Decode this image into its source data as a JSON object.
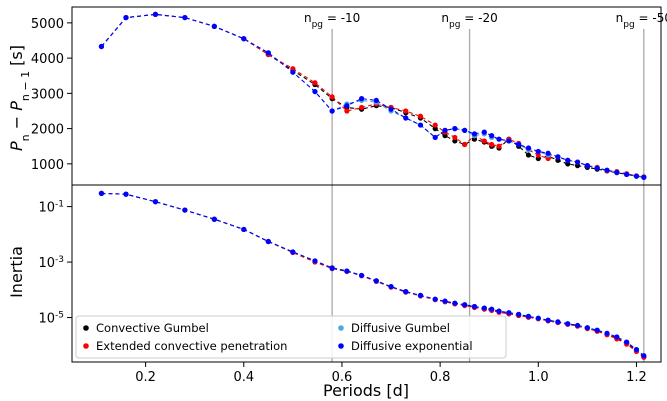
{
  "chart_data": [
    {
      "type": "line",
      "panel": "top",
      "ylabel": "P_n − P_{n−1} [s]",
      "ylim": [
        400,
        5450
      ],
      "yticks": [
        1000,
        2000,
        3000,
        4000,
        5000
      ],
      "grid": false,
      "vlines": [
        {
          "x": 0.58,
          "label": "n_pg = -10"
        },
        {
          "x": 0.86,
          "label": "n_pg = -20"
        },
        {
          "x": 1.215,
          "label": "n_pg = -50"
        }
      ],
      "series": [
        {
          "name": "Convective Gumbel",
          "color": "#000000",
          "x": [
            0.11,
            0.16,
            0.22,
            0.28,
            0.34,
            0.4,
            0.45,
            0.5,
            0.545,
            0.58,
            0.61,
            0.64,
            0.67,
            0.7,
            0.73,
            0.76,
            0.79,
            0.81,
            0.83,
            0.85,
            0.87,
            0.89,
            0.905,
            0.92,
            0.94,
            0.96,
            0.98,
            1.0,
            1.02,
            1.04,
            1.06,
            1.08,
            1.1,
            1.12,
            1.14,
            1.16,
            1.18,
            1.2,
            1.215
          ],
          "values": [
            4330,
            5150,
            5240,
            5150,
            4900,
            4550,
            4100,
            3650,
            3250,
            2850,
            2600,
            2550,
            2650,
            2600,
            2450,
            2300,
            2000,
            1800,
            1650,
            1550,
            1700,
            1620,
            1500,
            1450,
            1700,
            1500,
            1250,
            1150,
            1220,
            1100,
            1000,
            950,
            900,
            850,
            800,
            750,
            700,
            650,
            620
          ]
        },
        {
          "name": "Extended convective penetration",
          "color": "#ff0000",
          "x": [
            0.11,
            0.16,
            0.22,
            0.28,
            0.34,
            0.4,
            0.45,
            0.5,
            0.545,
            0.58,
            0.61,
            0.64,
            0.67,
            0.7,
            0.73,
            0.76,
            0.79,
            0.81,
            0.83,
            0.85,
            0.87,
            0.89,
            0.905,
            0.92,
            0.94,
            0.96,
            0.98,
            1.0,
            1.02,
            1.04,
            1.06,
            1.08,
            1.1,
            1.12,
            1.14,
            1.16,
            1.18,
            1.2,
            1.215
          ],
          "values": [
            4330,
            5150,
            5240,
            5150,
            4900,
            4550,
            4100,
            3700,
            3300,
            2900,
            2500,
            2600,
            2700,
            2600,
            2500,
            2350,
            2100,
            1900,
            1750,
            1550,
            1800,
            1650,
            1550,
            1500,
            1700,
            1580,
            1400,
            1250,
            1150,
            1200,
            1100,
            1050,
            950,
            900,
            800,
            780,
            720,
            660,
            630
          ]
        },
        {
          "name": "Diffusive Gumbel",
          "color": "#4ea8de",
          "x": [
            0.11,
            0.16,
            0.22,
            0.28,
            0.34,
            0.4,
            0.45,
            0.5,
            0.545,
            0.58,
            0.61,
            0.64,
            0.67,
            0.7,
            0.73,
            0.76,
            0.79,
            0.81,
            0.83,
            0.85,
            0.87,
            0.89,
            0.905,
            0.92,
            0.94,
            0.96,
            0.98,
            1.0,
            1.02,
            1.04,
            1.06,
            1.08,
            1.1,
            1.12,
            1.14,
            1.16,
            1.18,
            1.2,
            1.215
          ],
          "values": [
            4330,
            5150,
            5240,
            5150,
            4900,
            4550,
            4150,
            3600,
            3050,
            2500,
            2700,
            2800,
            2750,
            2500,
            2300,
            2100,
            1750,
            1950,
            2000,
            1950,
            1800,
            1850,
            1750,
            1700,
            1650,
            1550,
            1400,
            1350,
            1250,
            1200,
            1100,
            1050,
            950,
            880,
            820,
            760,
            700,
            650,
            620
          ]
        },
        {
          "name": "Diffusive exponential",
          "color": "#0000ff",
          "x": [
            0.11,
            0.16,
            0.22,
            0.28,
            0.34,
            0.4,
            0.45,
            0.5,
            0.545,
            0.58,
            0.61,
            0.64,
            0.67,
            0.7,
            0.73,
            0.76,
            0.79,
            0.81,
            0.83,
            0.85,
            0.87,
            0.89,
            0.905,
            0.92,
            0.94,
            0.96,
            0.98,
            1.0,
            1.02,
            1.04,
            1.06,
            1.08,
            1.1,
            1.12,
            1.14,
            1.16,
            1.18,
            1.2,
            1.215
          ],
          "values": [
            4330,
            5150,
            5240,
            5150,
            4900,
            4550,
            4150,
            3600,
            3050,
            2500,
            2650,
            2850,
            2800,
            2550,
            2300,
            2100,
            1750,
            1950,
            2000,
            1950,
            1850,
            1900,
            1800,
            1700,
            1650,
            1550,
            1450,
            1350,
            1300,
            1200,
            1100,
            1050,
            950,
            880,
            820,
            760,
            700,
            650,
            620
          ]
        }
      ]
    },
    {
      "type": "line",
      "panel": "bottom",
      "xlabel": "Periods [d]",
      "ylabel": "Inertia",
      "yscale": "log",
      "ylim": [
        2.5e-07,
        0.6
      ],
      "yticks": [
        0.1,
        0.001,
        1e-05
      ],
      "ytick_labels": [
        "10^-1",
        "10^-3",
        "10^-5"
      ],
      "xlim": [
        0.05,
        1.25
      ],
      "xticks": [
        0.2,
        0.4,
        0.6,
        0.8,
        1.0,
        1.2
      ],
      "xtick_labels": [
        "0.2",
        "0.4",
        "0.6",
        "0.8",
        "1.0",
        "1.2"
      ],
      "grid": false,
      "legend_placement": "lower-left",
      "vlines": [
        0.58,
        0.86,
        1.215
      ],
      "series": [
        {
          "name": "Convective Gumbel",
          "color": "#000000",
          "x": [
            0.11,
            0.16,
            0.22,
            0.28,
            0.34,
            0.4,
            0.45,
            0.5,
            0.545,
            0.58,
            0.61,
            0.64,
            0.67,
            0.7,
            0.73,
            0.76,
            0.79,
            0.81,
            0.83,
            0.85,
            0.87,
            0.89,
            0.905,
            0.92,
            0.94,
            0.96,
            0.98,
            1.0,
            1.02,
            1.04,
            1.06,
            1.08,
            1.1,
            1.12,
            1.14,
            1.16,
            1.18,
            1.2,
            1.215
          ],
          "values": [
            0.3,
            0.28,
            0.15,
            0.075,
            0.035,
            0.015,
            0.0055,
            0.0023,
            0.0011,
            0.00062,
            0.00048,
            0.00033,
            0.00021,
            0.00013,
            8.5e-05,
            6.2e-05,
            4.5e-05,
            3.8e-05,
            3.2e-05,
            2.8e-05,
            2.4e-05,
            2.1e-05,
            1.9e-05,
            1.6e-05,
            1.4e-05,
            1.2e-05,
            1.05e-05,
            9.2e-06,
            7.8e-06,
            6.8e-06,
            5.8e-06,
            5e-06,
            4.1e-06,
            3.3e-06,
            2.5e-06,
            1.8e-06,
            1.2e-06,
            6.5e-07,
            4e-07
          ]
        },
        {
          "name": "Extended convective penetration",
          "color": "#ff0000",
          "x": [
            0.11,
            0.16,
            0.22,
            0.28,
            0.34,
            0.4,
            0.45,
            0.5,
            0.545,
            0.58,
            0.61,
            0.64,
            0.67,
            0.7,
            0.73,
            0.76,
            0.79,
            0.81,
            0.83,
            0.85,
            0.87,
            0.89,
            0.905,
            0.92,
            0.94,
            0.96,
            0.98,
            1.0,
            1.02,
            1.04,
            1.06,
            1.08,
            1.1,
            1.12,
            1.14,
            1.16,
            1.18,
            1.2,
            1.215
          ],
          "values": [
            0.3,
            0.28,
            0.15,
            0.075,
            0.035,
            0.015,
            0.0055,
            0.0022,
            0.001,
            0.00058,
            0.00046,
            0.00032,
            0.0002,
            0.000125,
            8.2e-05,
            6e-05,
            4.4e-05,
            3.7e-05,
            3.1e-05,
            2.7e-05,
            2.3e-05,
            2e-05,
            1.8e-05,
            1.55e-05,
            1.35e-05,
            1.18e-05,
            1.02e-05,
            9e-06,
            7.6e-06,
            6.6e-06,
            5.7e-06,
            4.9e-06,
            4e-06,
            3.2e-06,
            2.4e-06,
            1.7e-06,
            1.1e-06,
            6e-07,
            3.7e-07
          ]
        },
        {
          "name": "Diffusive Gumbel",
          "color": "#4ea8de",
          "x": [
            0.11,
            0.16,
            0.22,
            0.28,
            0.34,
            0.4,
            0.45,
            0.5,
            0.545,
            0.58,
            0.61,
            0.64,
            0.67,
            0.7,
            0.73,
            0.76,
            0.79,
            0.81,
            0.83,
            0.85,
            0.87,
            0.89,
            0.905,
            0.92,
            0.94,
            0.96,
            0.98,
            1.0,
            1.02,
            1.04,
            1.06,
            1.08,
            1.1,
            1.12,
            1.14,
            1.16,
            1.18,
            1.2,
            1.215
          ],
          "values": [
            0.3,
            0.28,
            0.15,
            0.075,
            0.035,
            0.015,
            0.0055,
            0.0023,
            0.0011,
            0.0006,
            0.00047,
            0.00033,
            0.00021,
            0.00013,
            8.6e-05,
            6.3e-05,
            4.6e-05,
            3.9e-05,
            3.3e-05,
            2.9e-05,
            2.5e-05,
            2.2e-05,
            2e-05,
            1.7e-05,
            1.5e-05,
            1.3e-05,
            1.1e-05,
            9.5e-06,
            8e-06,
            7e-06,
            6e-06,
            5.2e-06,
            4.3e-06,
            3.5e-06,
            2.7e-06,
            2e-06,
            1.3e-06,
            7e-07,
            4.2e-07
          ]
        },
        {
          "name": "Diffusive exponential",
          "color": "#0000ff",
          "x": [
            0.11,
            0.16,
            0.22,
            0.28,
            0.34,
            0.4,
            0.45,
            0.5,
            0.545,
            0.58,
            0.61,
            0.64,
            0.67,
            0.7,
            0.73,
            0.76,
            0.79,
            0.81,
            0.83,
            0.85,
            0.87,
            0.89,
            0.905,
            0.92,
            0.94,
            0.96,
            0.98,
            1.0,
            1.02,
            1.04,
            1.06,
            1.08,
            1.1,
            1.12,
            1.14,
            1.16,
            1.18,
            1.2,
            1.215
          ],
          "values": [
            0.3,
            0.28,
            0.15,
            0.075,
            0.035,
            0.015,
            0.0055,
            0.0023,
            0.0011,
            0.0006,
            0.00047,
            0.00033,
            0.00021,
            0.00013,
            8.6e-05,
            6.3e-05,
            4.6e-05,
            3.9e-05,
            3.3e-05,
            2.9e-05,
            2.5e-05,
            2.2e-05,
            2e-05,
            1.7e-05,
            1.5e-05,
            1.3e-05,
            1.1e-05,
            9.5e-06,
            8e-06,
            7e-06,
            6e-06,
            5.2e-06,
            4.3e-06,
            3.5e-06,
            2.7e-06,
            2e-06,
            1.3e-06,
            7e-07,
            4.2e-07
          ]
        }
      ]
    }
  ]
}
